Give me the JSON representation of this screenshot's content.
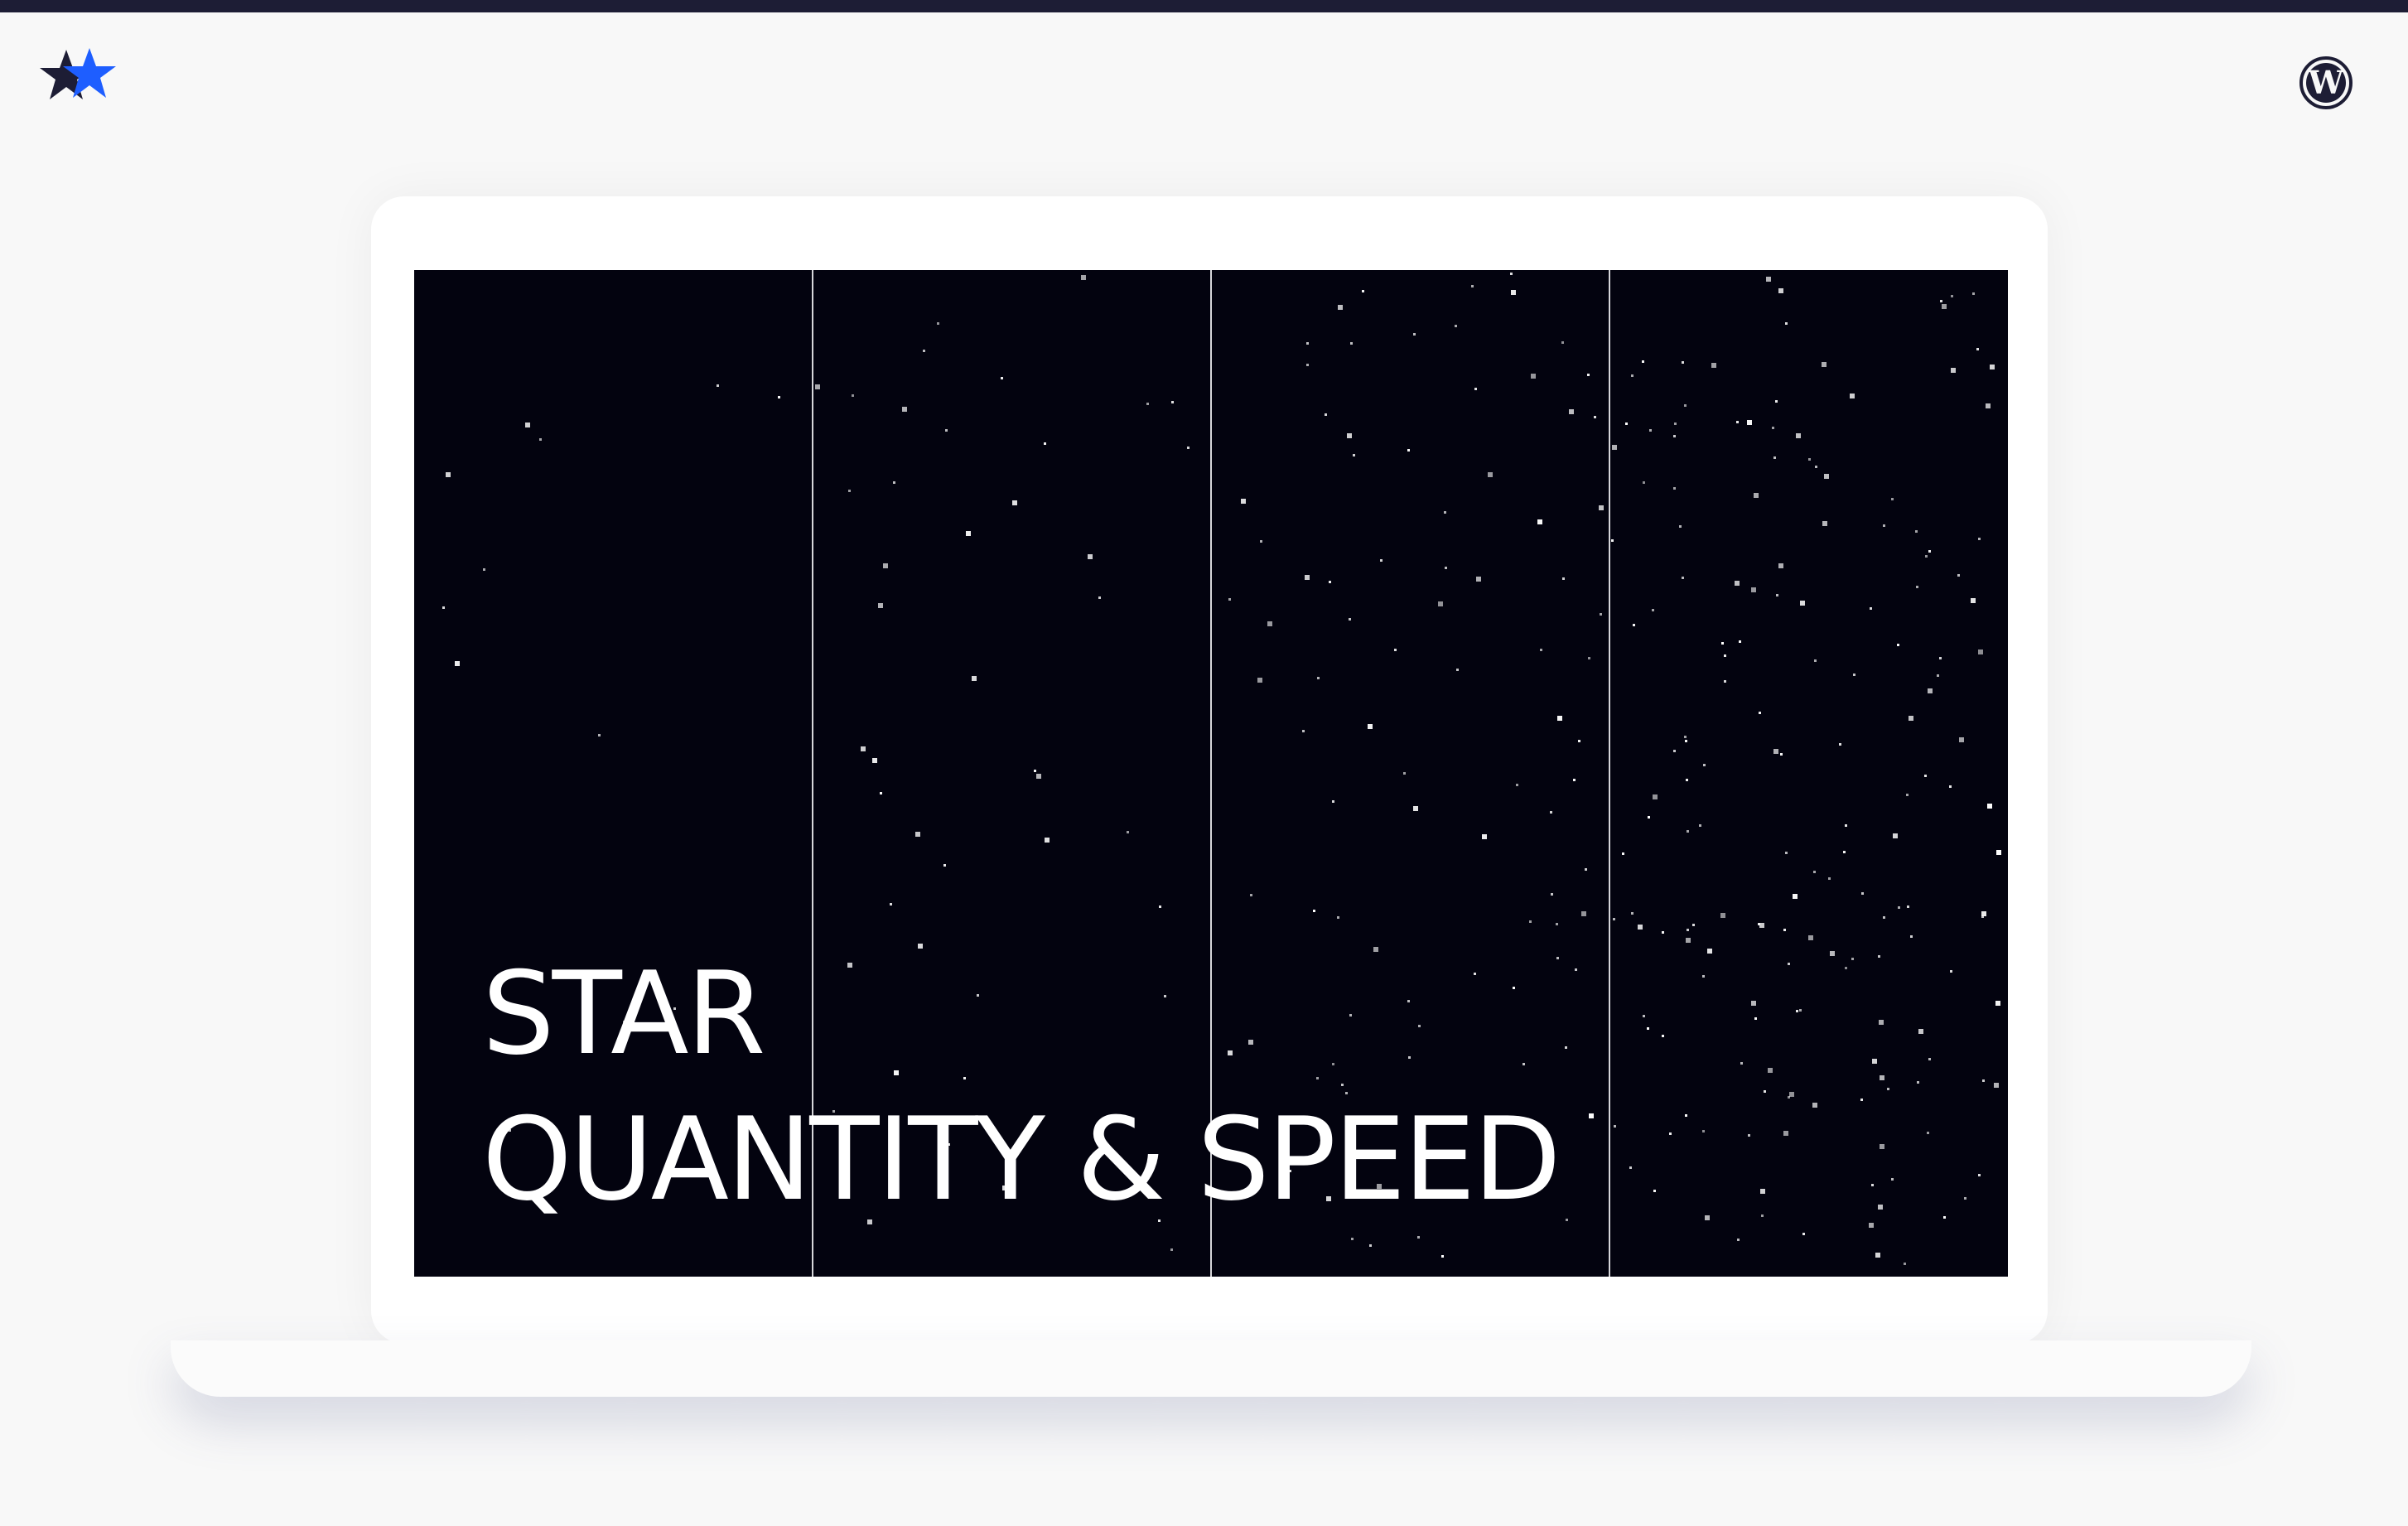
{
  "headline": {
    "line1": "STAR",
    "line2": "QUANTITY & SPEED"
  },
  "icons": {
    "brand_logo": "two-stars-icon",
    "platform_logo": "wordpress-icon"
  },
  "colors": {
    "top_bar": "#1d1d35",
    "star_dark": "#1d1d35",
    "star_blue": "#1e5eff",
    "screen_background": "#03030f",
    "panel_divider": "#d6d6da",
    "star": "#ffffff"
  },
  "panels": [
    {
      "star_density": 12
    },
    {
      "star_density": 45
    },
    {
      "star_density": 90
    },
    {
      "star_density": 170
    }
  ]
}
